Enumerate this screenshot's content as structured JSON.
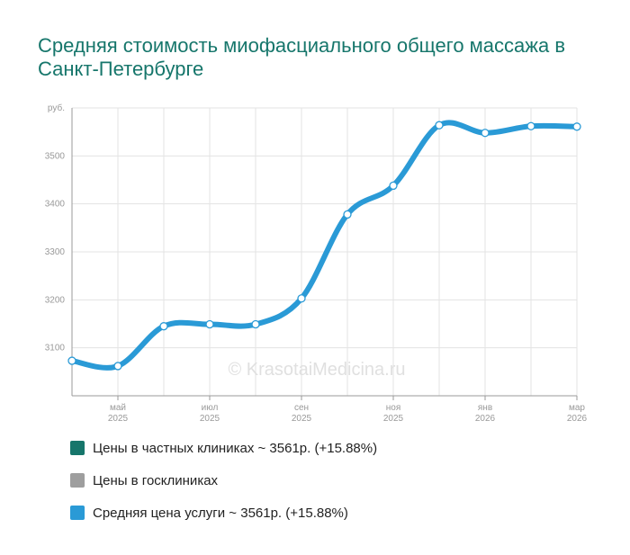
{
  "title": "Средняя стоимость миофасциального общего массажа в Санкт-Петербурге",
  "watermark": "© KrasotaiMedicina.ru",
  "colors": {
    "line": "#2a9ad6",
    "grid": "#e3e3e3",
    "axis": "#9a9a9a",
    "tick_text": "#999999",
    "private": "#16766b",
    "public": "#9e9e9e",
    "average": "#2a9ad6"
  },
  "legend": [
    {
      "label": "Цены в частных клиниках ~ 3561р. (+15.88%)",
      "color": "#16766b"
    },
    {
      "label": "Цены в госклиниках",
      "color": "#9e9e9e"
    },
    {
      "label": "Средняя цена услуги ~ 3561р. (+15.88%)",
      "color": "#2a9ad6"
    }
  ],
  "chart_data": {
    "type": "line",
    "ylabel": "руб.",
    "ylim": [
      3000,
      3600
    ],
    "yticks": [
      3100,
      3200,
      3300,
      3400,
      3500
    ],
    "x_ticks": [
      {
        "month": "май",
        "year": "2025",
        "x": 1
      },
      {
        "month": "июл",
        "year": "2025",
        "x": 3
      },
      {
        "month": "сен",
        "year": "2025",
        "x": 5
      },
      {
        "month": "ноя",
        "year": "2025",
        "x": 7
      },
      {
        "month": "янв",
        "year": "2026",
        "x": 9
      },
      {
        "month": "мар",
        "year": "2026",
        "x": 11
      }
    ],
    "xlim": [
      0,
      11
    ],
    "series": [
      {
        "name": "Средняя цена услуги",
        "x": [
          0,
          1,
          2,
          3,
          4,
          5,
          6,
          7,
          8,
          9,
          10,
          11
        ],
        "values": [
          3073,
          3062,
          3145,
          3149,
          3149,
          3203,
          3378,
          3438,
          3564,
          3548,
          3562,
          3561
        ]
      }
    ]
  }
}
